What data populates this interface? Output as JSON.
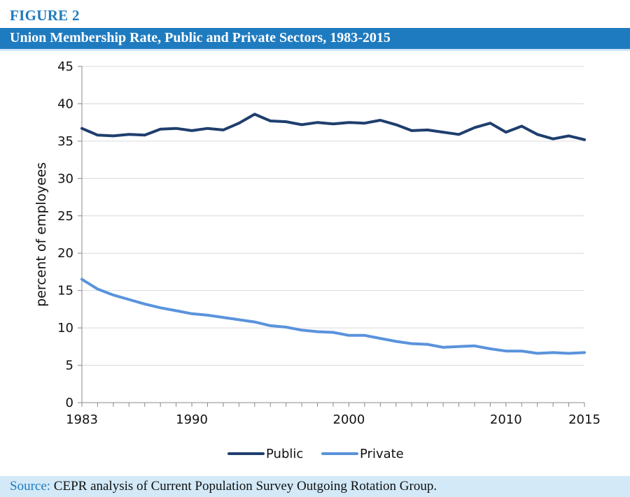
{
  "figure_label": "FIGURE 2",
  "source": {
    "prefix": "Source:",
    "text": " CEPR analysis of Current Population Survey Outgoing Rotation Group."
  },
  "colors": {
    "public": "#1f3e6e",
    "private": "#5a93dc",
    "accent": "#1f7bbf",
    "grid": "#d9d9d9"
  },
  "chart_data": {
    "type": "line",
    "title": "Union Membership Rate, Public and Private Sectors, 1983-2015",
    "xlabel": "",
    "ylabel": "percent of employees",
    "xlim": [
      1983,
      2015
    ],
    "ylim": [
      0,
      45
    ],
    "x_ticks": [
      1983,
      1990,
      2000,
      2010,
      2015
    ],
    "y_ticks": [
      0,
      5,
      10,
      15,
      20,
      25,
      30,
      35,
      40,
      45
    ],
    "grid": "horizontal",
    "legend": "bottom-center",
    "x": [
      1983,
      1984,
      1985,
      1986,
      1987,
      1988,
      1989,
      1990,
      1991,
      1992,
      1993,
      1994,
      1995,
      1996,
      1997,
      1998,
      1999,
      2000,
      2001,
      2002,
      2003,
      2004,
      2005,
      2006,
      2007,
      2008,
      2009,
      2010,
      2011,
      2012,
      2013,
      2014,
      2015
    ],
    "series": [
      {
        "name": "Public",
        "values": [
          36.7,
          35.8,
          35.7,
          35.9,
          35.8,
          36.6,
          36.7,
          36.4,
          36.7,
          36.5,
          37.4,
          38.6,
          37.7,
          37.6,
          37.2,
          37.5,
          37.3,
          37.5,
          37.4,
          37.8,
          37.2,
          36.4,
          36.5,
          36.2,
          35.9,
          36.8,
          37.4,
          36.2,
          37.0,
          35.9,
          35.3,
          35.7,
          35.2
        ]
      },
      {
        "name": "Private",
        "values": [
          16.5,
          15.2,
          14.4,
          13.8,
          13.2,
          12.7,
          12.3,
          11.9,
          11.7,
          11.4,
          11.1,
          10.8,
          10.3,
          10.1,
          9.7,
          9.5,
          9.4,
          9.0,
          9.0,
          8.6,
          8.2,
          7.9,
          7.8,
          7.4,
          7.5,
          7.6,
          7.2,
          6.9,
          6.9,
          6.6,
          6.7,
          6.6,
          6.7
        ]
      }
    ]
  }
}
